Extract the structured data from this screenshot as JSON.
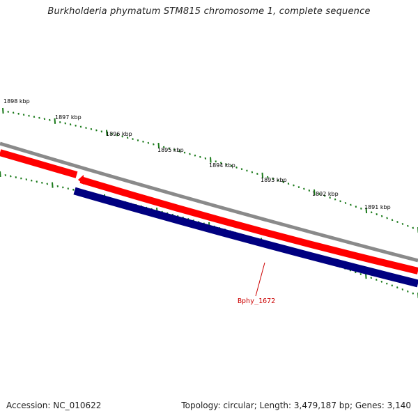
{
  "map": {
    "title": "Burkholderia phymatum STM815 chromosome 1, complete sequence",
    "accession_label": "Accession: NC_010622",
    "stats_label": "Topology: circular; Length: 3,479,187 bp; Genes: 3,140",
    "kbp_labels": [
      "1898 kbp",
      "1897 kbp",
      "1896 kbp",
      "1895 kbp",
      "1894 kbp",
      "1893 kbp",
      "1892 kbp",
      "1891 kbp"
    ],
    "gene_label": "Bphy_1672"
  },
  "colors": {
    "backbone": "#808080",
    "forward_strand": "#ff0000",
    "reverse_strand": "#000080",
    "ticks": "#1a7a1a",
    "gene_label": "#cc0000"
  }
}
